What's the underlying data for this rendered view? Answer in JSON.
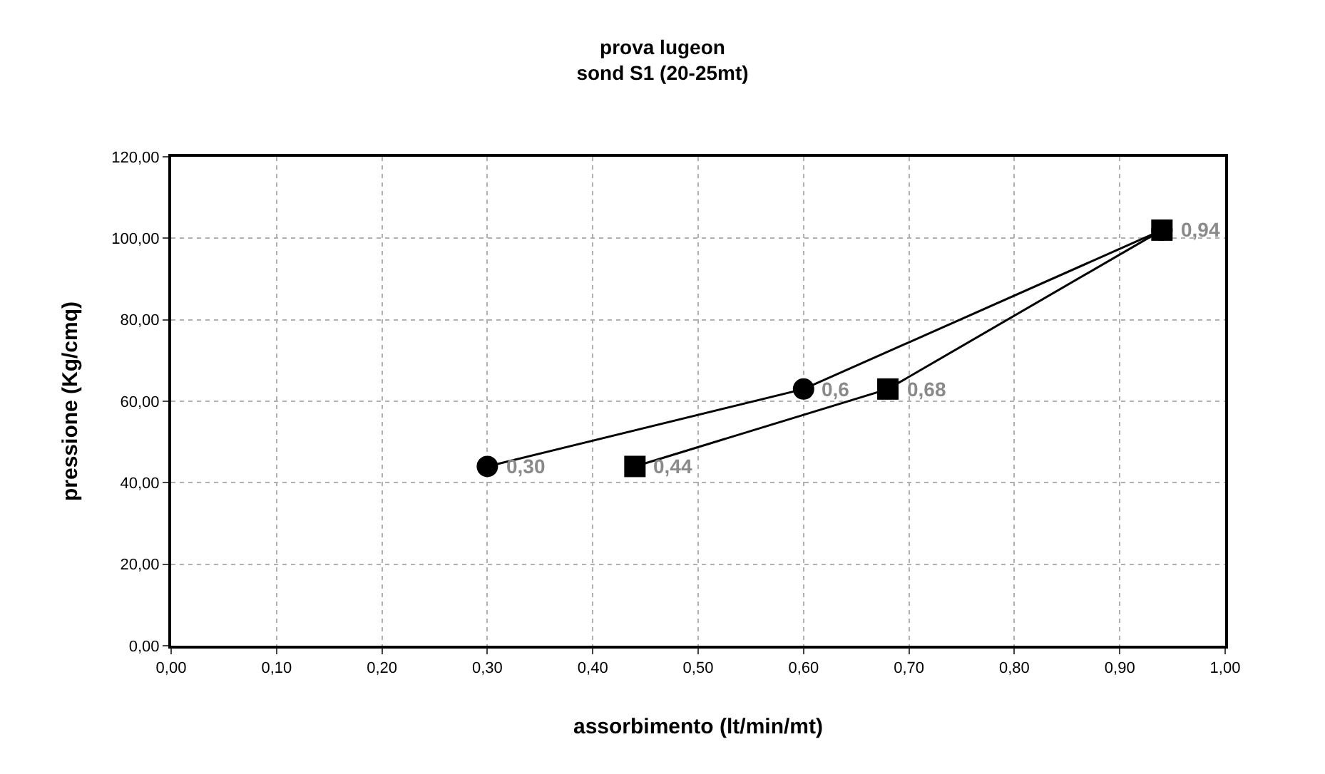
{
  "chart_data": {
    "type": "line",
    "title": "prova lugeon",
    "subtitle": "sond S1 (20-25mt)",
    "xlabel": "assorbimento (lt/min/mt)",
    "ylabel": "pressione (Kg/cmq)",
    "series": [
      {
        "color": "#000000",
        "marker": "circle",
        "x": [
          0.3,
          0.6,
          0.94
        ],
        "values": [
          44,
          63,
          102
        ]
      },
      {
        "color": "#000000",
        "marker": "square",
        "x": [
          0.44,
          0.68,
          0.94
        ],
        "values": [
          44,
          63,
          102
        ]
      }
    ],
    "xlim": [
      0,
      1
    ],
    "xticks": [
      {
        "value": 0,
        "label": "0,00"
      },
      {
        "value": 0.1,
        "label": "0,10"
      },
      {
        "value": 0.2,
        "label": "0,20"
      },
      {
        "value": 0.3,
        "label": "0,30"
      },
      {
        "value": 0.4,
        "label": "0,40"
      },
      {
        "value": 0.5,
        "label": "0,50"
      },
      {
        "value": 0.6,
        "label": "0,60"
      },
      {
        "value": 0.7,
        "label": "0,70"
      },
      {
        "value": 0.8,
        "label": "0,80"
      },
      {
        "value": 0.9,
        "label": "0,90"
      },
      {
        "value": 1,
        "label": "1,00"
      }
    ],
    "ylim": [
      0,
      120
    ],
    "yticks": [
      {
        "value": 0,
        "label": "0,00"
      },
      {
        "value": 20,
        "label": "20,00"
      },
      {
        "value": 40,
        "label": "40,00"
      },
      {
        "value": 60,
        "label": "60,00"
      },
      {
        "value": 80,
        "label": "80,00"
      },
      {
        "value": 100,
        "label": "100,00"
      },
      {
        "value": 120,
        "label": "120,00"
      }
    ],
    "annotations": [
      {
        "text": "0,30",
        "x": 0.3,
        "y": 44
      },
      {
        "text": "0,6",
        "x": 0.6,
        "y": 63
      },
      {
        "text": "0,44",
        "x": 0.44,
        "y": 44
      },
      {
        "text": "0,68",
        "x": 0.68,
        "y": 63
      },
      {
        "text": "0,94",
        "x": 0.94,
        "y": 102
      }
    ],
    "grid": true,
    "line_style": "solid"
  }
}
